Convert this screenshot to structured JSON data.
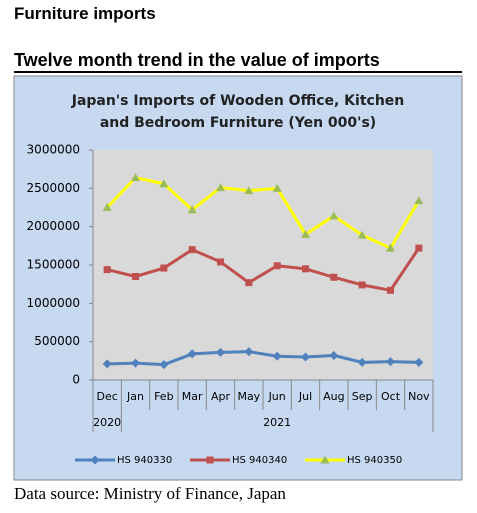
{
  "heading": "Furniture imports",
  "subheading": "Twelve month trend in the value of imports",
  "chart_data": {
    "type": "line",
    "title": "Japan's Imports of  Wooden  Office, Kitchen and Bedroom Furniture (Yen 000's)",
    "categories": [
      "Dec",
      "Jan",
      "Feb",
      "Mar",
      "Apr",
      "May",
      "Jun",
      "Jul",
      "Aug",
      "Sep",
      "Oct",
      "Nov"
    ],
    "year_labels": [
      "2020",
      "2021"
    ],
    "series": [
      {
        "name": "HS 940330",
        "color": "#4f81bd",
        "marker": "diamond",
        "values": [
          210000,
          220000,
          200000,
          340000,
          360000,
          370000,
          310000,
          300000,
          320000,
          230000,
          240000,
          230000
        ]
      },
      {
        "name": "HS 940340",
        "color": "#c0504d",
        "marker": "square",
        "values": [
          1440000,
          1350000,
          1460000,
          1700000,
          1540000,
          1270000,
          1490000,
          1450000,
          1340000,
          1240000,
          1170000,
          1720000
        ]
      },
      {
        "name": "HS 940350",
        "color": "#ffff00",
        "marker": "triangle",
        "values": [
          2250000,
          2640000,
          2560000,
          2220000,
          2510000,
          2470000,
          2500000,
          1900000,
          2140000,
          1890000,
          1720000,
          2340000
        ]
      }
    ],
    "ylim": [
      0,
      3000000
    ],
    "yticks": [
      0,
      500000,
      1000000,
      1500000,
      2000000,
      2500000,
      3000000
    ],
    "grid": false
  },
  "source": "Data source: Ministry of Finance, Japan"
}
